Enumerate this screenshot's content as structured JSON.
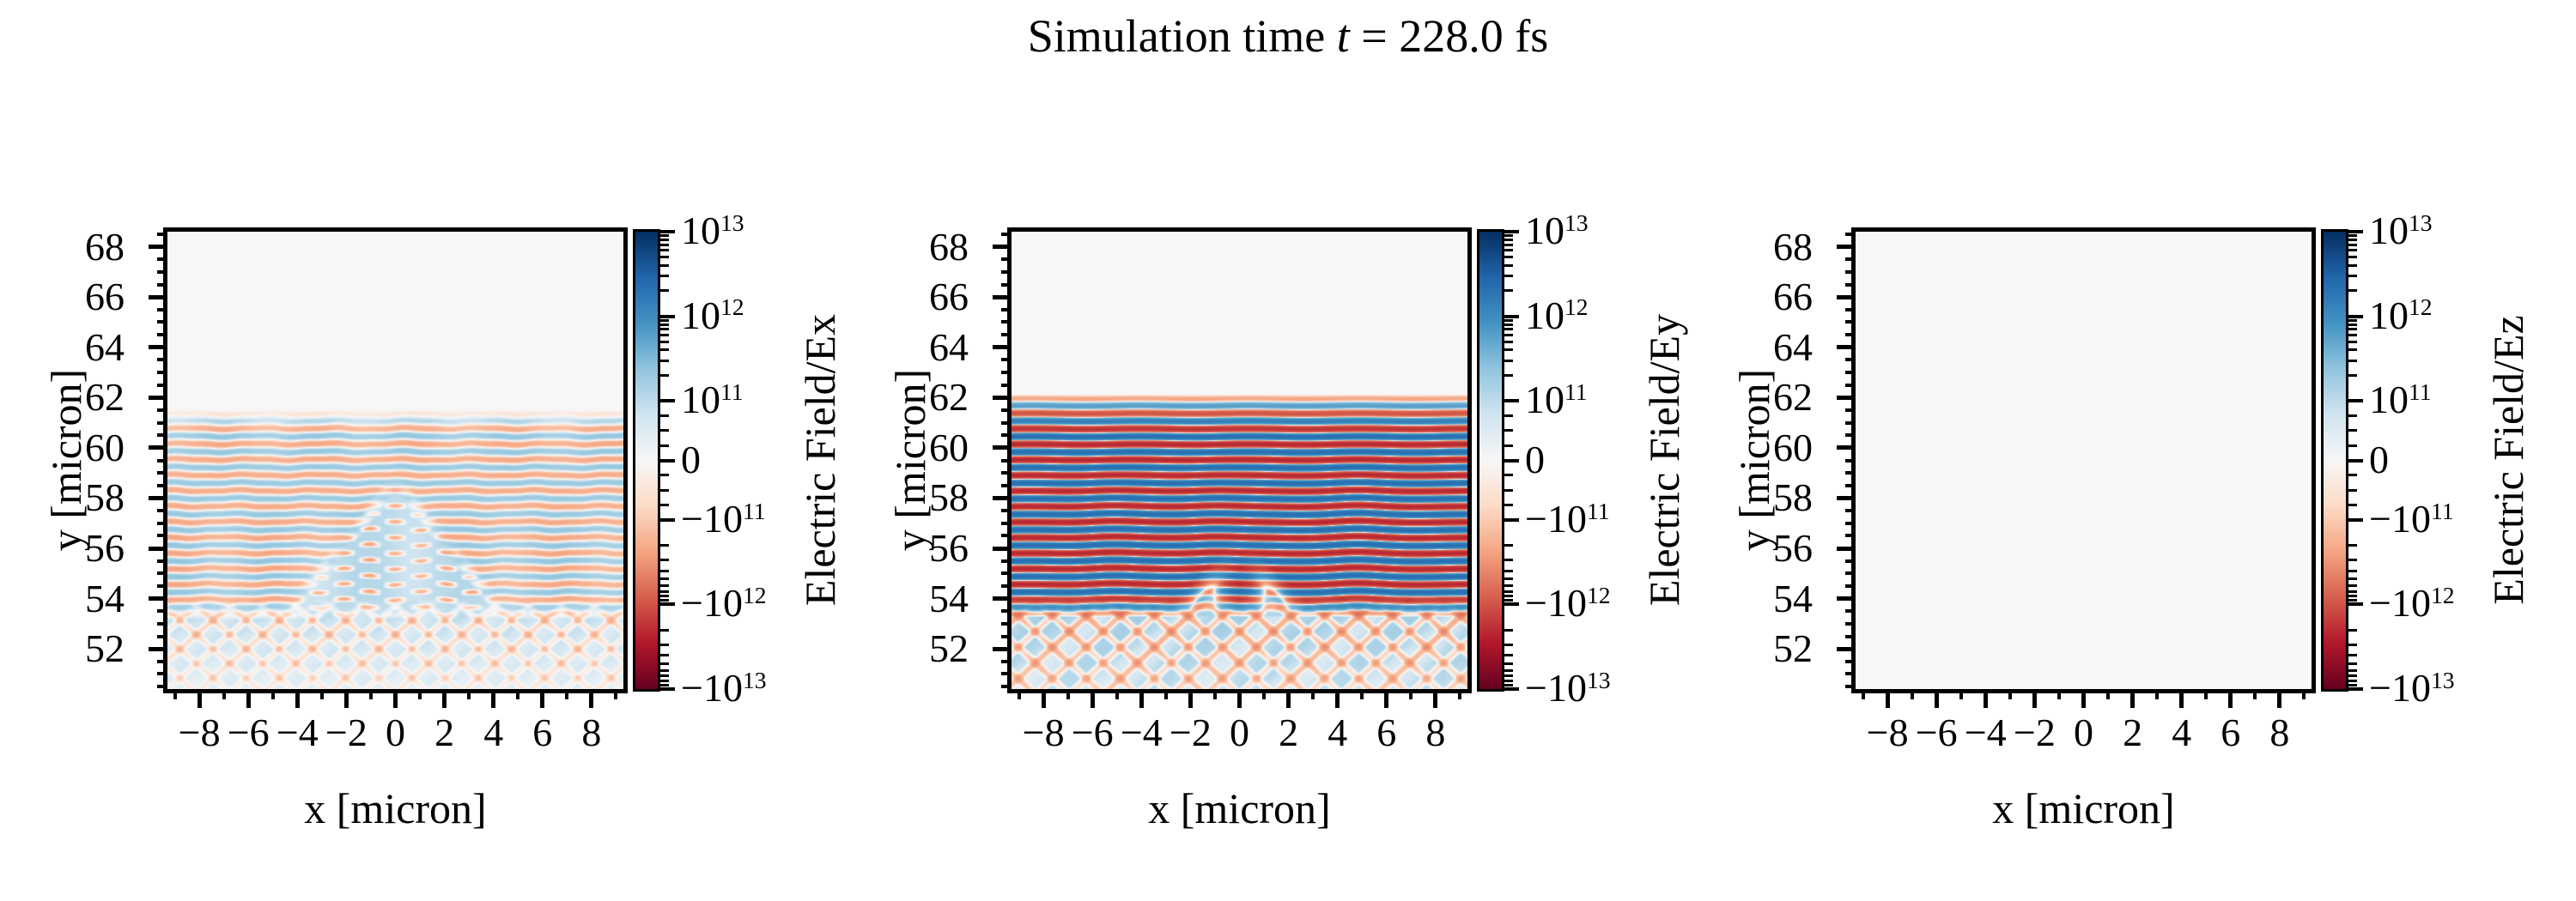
{
  "title": {
    "prefix": "Simulation time ",
    "var": "t",
    "rest": " = 228.0 fs"
  },
  "chart_data": {
    "type": "heatmap",
    "layout": "1 row x 3 columns, each subplot with its own vertical colorbar on the right",
    "suptitle": "Simulation time t = 228.0 fs",
    "simulation_time_fs": 228.0,
    "xlabel": "x [micron]",
    "ylabel": "y [micron]",
    "xlim": [
      -9.3,
      9.3
    ],
    "ylim": [
      50.4,
      68.6
    ],
    "x_major_ticks": [
      -8,
      -6,
      -4,
      -2,
      0,
      2,
      4,
      6,
      8
    ],
    "x_tick_labels": [
      "−8",
      "−6",
      "−4",
      "−2",
      "0",
      "2",
      "4",
      "6",
      "8"
    ],
    "x_minor_step": 1,
    "y_major_ticks": [
      52,
      54,
      56,
      58,
      60,
      62,
      64,
      66,
      68
    ],
    "y_tick_labels": [
      "52",
      "54",
      "56",
      "58",
      "60",
      "62",
      "64",
      "66",
      "68"
    ],
    "y_minor_step": 0.5,
    "colormap": {
      "name": "RdBu",
      "stops": [
        "#67001f",
        "#b2182b",
        "#d6604d",
        "#f4a582",
        "#fddbc7",
        "#f7f7f7",
        "#d1e5f0",
        "#92c5de",
        "#4393c3",
        "#2166ac",
        "#053061"
      ]
    },
    "colorbar": {
      "scale": "symlog",
      "vmin": -10000000000000.0,
      "vmax": 10000000000000.0,
      "linthresh": 100000000000.0,
      "linear_fraction_of_half": 0.26,
      "decade_fraction_of_half": 0.37,
      "major_ticks": [
        {
          "value_1e11": 100,
          "label": "10^13"
        },
        {
          "value_1e11": 10,
          "label": "10^12"
        },
        {
          "value_1e11": 1,
          "label": "10^11"
        },
        {
          "value_1e11": 0,
          "label": "0"
        },
        {
          "value_1e11": -1,
          "label": "−10^11"
        },
        {
          "value_1e11": -10,
          "label": "−10^12"
        },
        {
          "value_1e11": -100,
          "label": "−10^13"
        }
      ],
      "minor_tick_values_1e11": [
        0.25,
        0.5,
        0.75,
        2,
        3,
        4,
        5,
        6,
        7,
        8,
        9,
        20,
        30,
        40,
        50,
        60,
        70,
        80,
        90
      ]
    },
    "panels": [
      {
        "field": "Ex",
        "cbar_label": "Electric Field/Ex",
        "description": "Moderate horizontal wave stripes (|Ex|~2e11, alternating blue/orange) below y≈61.5; V-shaped interference wedge around x=0 breaking stripes into blob columns; pale diagonal standing-wave lattice (light blue with orange streaks) below y≈54; zero field (near-white) above y≈61.5.",
        "render": {
          "wave_top_y": 61.55,
          "period_micron": 0.62,
          "amp_1e11": 2.0,
          "wedge_apex_y": 58.9,
          "lattice_below_y": 54.0
        }
      },
      {
        "field": "Ey",
        "cbar_label": "Electric Field/Ey",
        "description": "Strong saturated horizontal stripes (|Ey| up to ~2e12, deep red/deep blue with thin white zero crossings) below y≈62, slightly bowed, with kink disturbances near x≈−5, x≈−1 and x≈+5; diagonal lattice below y≈54.3; zero field above y≈62.",
        "render": {
          "wave_top_y": 62.15,
          "period_micron": 0.62,
          "amp_1e11": 22,
          "kinks_x": [
            -5.3,
            -1.1,
            4.8
          ],
          "lattice_below_y": 54.25
        }
      },
      {
        "field": "Ez",
        "cbar_label": "Electric Field/Ez",
        "description": "Zero field everywhere — uniform near-white panel.",
        "render": {
          "amp_1e11": 0
        }
      }
    ]
  }
}
